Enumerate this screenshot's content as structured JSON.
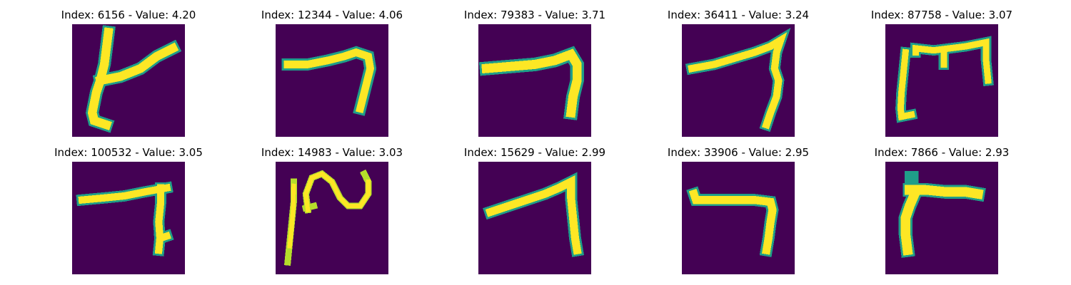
{
  "panels": [
    {
      "title": "Index: 6156 - Value: 4.20",
      "index": 6156,
      "value": 4.2,
      "glyph": "glyph-7-crossed-left-bar"
    },
    {
      "title": "Index: 12344 - Value: 4.06",
      "index": 12344,
      "value": 4.06,
      "glyph": "glyph-7-wavy-top"
    },
    {
      "title": "Index: 79383 - Value: 3.71",
      "index": 79383,
      "value": 3.71,
      "glyph": "glyph-7-thick"
    },
    {
      "title": "Index: 36411 - Value: 3.24",
      "index": 36411,
      "value": 3.24,
      "glyph": "glyph-7-slanted"
    },
    {
      "title": "Index: 87758 - Value: 3.07",
      "index": 87758,
      "value": 3.07,
      "glyph": "glyph-box-shape"
    },
    {
      "title": "Index: 100532 - Value: 3.05",
      "index": 100532,
      "value": 3.05,
      "glyph": "glyph-7-straight"
    },
    {
      "title": "Index: 14983 - Value: 3.03",
      "index": 14983,
      "value": 3.03,
      "glyph": "glyph-squiggle"
    },
    {
      "title": "Index: 15629 - Value: 2.99",
      "index": 15629,
      "value": 2.99,
      "glyph": "glyph-7-angled"
    },
    {
      "title": "Index: 33906 - Value: 2.95",
      "index": 33906,
      "value": 2.95,
      "glyph": "glyph-7-flat"
    },
    {
      "title": "Index: 7866 - Value: 2.93",
      "index": 7866,
      "value": 2.93,
      "glyph": "glyph-7-reversed"
    }
  ],
  "colors": {
    "background": "#ffffff",
    "image_background": "#440154",
    "stroke_core": "#fde725",
    "stroke_mid": "#b5de2b",
    "stroke_edge": "#1f9e89"
  }
}
